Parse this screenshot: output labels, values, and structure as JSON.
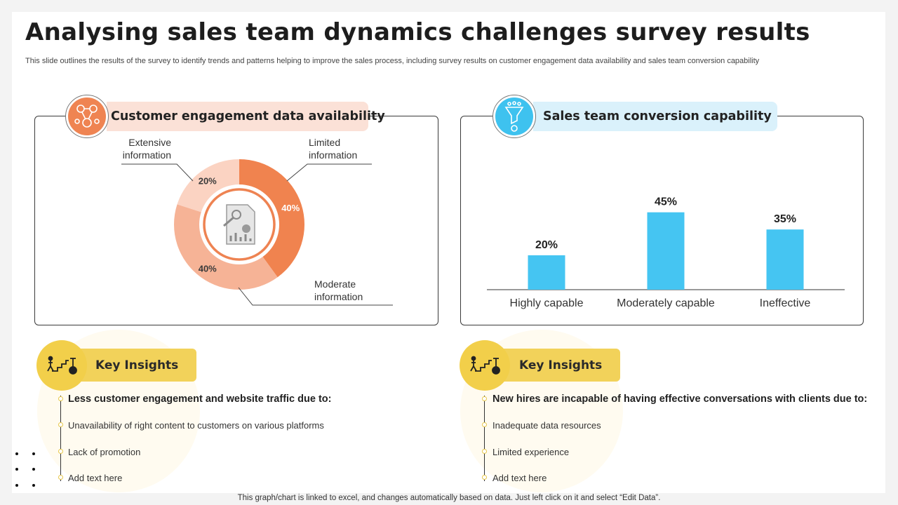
{
  "title": "Analysing sales team dynamics challenges survey results",
  "subtitle": "This slide outlines the results of the survey to identify trends and patterns helping to improve the sales process, including survey results on customer engagement data availability and sales team conversion capability",
  "left_panel": {
    "heading": "Customer engagement data availability",
    "icon": "people-network-icon",
    "center_icon": "document-report-icon"
  },
  "right_panel": {
    "heading": "Sales team conversion capability",
    "icon": "funnel-coins-icon"
  },
  "chart_data": [
    {
      "type": "pie",
      "subtype": "donut",
      "categories": [
        "Limited information",
        "Moderate information",
        "Extensive information"
      ],
      "values": [
        40,
        40,
        20
      ],
      "value_labels": [
        "40%",
        "40%",
        "20%"
      ],
      "label_lines": [
        [
          "Limited",
          "information"
        ],
        [
          "Moderate",
          "information"
        ],
        [
          "Extensive",
          "information"
        ]
      ],
      "colors": [
        "#f0834f",
        "#f6b396",
        "#fbd3c2"
      ]
    },
    {
      "type": "bar",
      "categories": [
        "Highly capable",
        "Moderately capable",
        "Ineffective"
      ],
      "values": [
        20,
        45,
        35
      ],
      "value_labels": [
        "20%",
        "45%",
        "35%"
      ],
      "color": "#45c5f2",
      "ylim": [
        0,
        50
      ],
      "grid": false
    }
  ],
  "insights_left": {
    "title": "Key Insights",
    "icon": "stairs-goal-icon",
    "heading": "Less customer engagement and website traffic due to:",
    "items": [
      "Unavailability  of right content to customers on various  platforms",
      "Lack of promotion",
      "Add text here"
    ]
  },
  "insights_right": {
    "title": "Key Insights",
    "icon": "stairs-goal-icon",
    "heading": "New hires are incapable of having effective conversations with clients due to:",
    "items": [
      "Inadequate  data resources",
      "Limited experience",
      "Add text here"
    ]
  },
  "footer": "This graph/chart is linked to excel,  and changes automatically based on data. Just left click on it and select “Edit Data”."
}
